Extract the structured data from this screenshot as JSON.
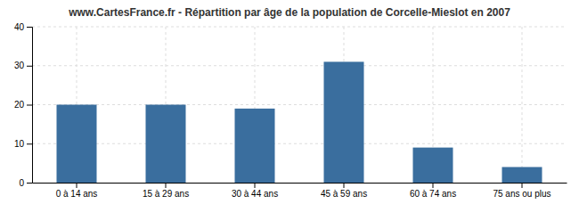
{
  "chart_data": {
    "type": "bar",
    "title": "www.CartesFrance.fr - Répartition par âge de la population de Corcelle-Mieslot en 2007",
    "categories": [
      "0 à 14 ans",
      "15 à 29 ans",
      "30 à 44 ans",
      "45 à 59 ans",
      "60 à 74 ans",
      "75 ans ou plus"
    ],
    "values": [
      20,
      20,
      19,
      31,
      9,
      4
    ],
    "color": "#3a6e9e",
    "ylim": [
      0,
      40
    ],
    "yticks": [
      0,
      10,
      20,
      30,
      40
    ],
    "grid": true
  }
}
